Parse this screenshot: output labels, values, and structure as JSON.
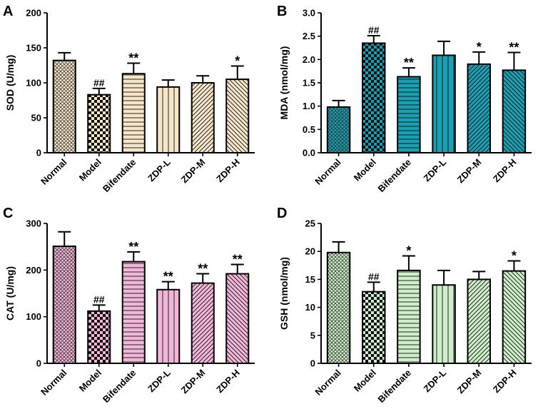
{
  "chart_data": [
    {
      "type": "bar",
      "panel": "A",
      "categories": [
        "Normal",
        "Model",
        "Bifendate",
        "ZDP-L",
        "ZDP-M",
        "ZDP-H"
      ],
      "values": [
        132,
        83,
        113,
        94,
        100,
        105
      ],
      "errors": [
        11,
        9,
        15,
        10,
        10,
        19
      ],
      "significance": [
        "",
        "##",
        "**",
        "",
        "",
        "*"
      ],
      "ylabel": "SOD (U/mg)",
      "ylim": [
        0,
        200
      ],
      "yticks": [
        0,
        50,
        100,
        150,
        200
      ],
      "color": "#f5e6c8",
      "patterns": [
        "crosshatch",
        "checker",
        "horizontal",
        "vertical",
        "diag-right",
        "diag-left"
      ]
    },
    {
      "type": "bar",
      "panel": "B",
      "categories": [
        "Normal",
        "Model",
        "Bifendate",
        "ZDP-L",
        "ZDP-M",
        "ZDP-H"
      ],
      "values": [
        0.98,
        2.35,
        1.63,
        2.09,
        1.9,
        1.77
      ],
      "errors": [
        0.14,
        0.16,
        0.19,
        0.3,
        0.26,
        0.38
      ],
      "significance": [
        "",
        "##",
        "**",
        "",
        "*",
        "**"
      ],
      "ylabel": "MDA (nmol/mg)",
      "ylim": [
        0,
        3
      ],
      "yticks": [
        "0.0",
        "0.5",
        "1.0",
        "1.5",
        "2.0",
        "2.5",
        "3.0"
      ],
      "color": "#1a9fb3",
      "patterns": [
        "crosshatch",
        "checker",
        "horizontal",
        "vertical",
        "diag-right",
        "diag-left"
      ]
    },
    {
      "type": "bar",
      "panel": "C",
      "categories": [
        "Normal",
        "Model",
        "Bifendate",
        "ZDP-L",
        "ZDP-M",
        "ZDP-H"
      ],
      "values": [
        251,
        112,
        218,
        158,
        172,
        192
      ],
      "errors": [
        31,
        13,
        21,
        17,
        20,
        20
      ],
      "significance": [
        "",
        "##",
        "**",
        "**",
        "**",
        "**"
      ],
      "ylabel": "CAT (U/mg)",
      "ylim": [
        0,
        300
      ],
      "yticks": [
        0,
        100,
        200,
        300
      ],
      "color": "#f2b6d8",
      "patterns": [
        "crosshatch",
        "checker",
        "horizontal",
        "vertical",
        "diag-right",
        "diag-left"
      ]
    },
    {
      "type": "bar",
      "panel": "D",
      "categories": [
        "Normal",
        "Model",
        "Bifendate",
        "ZDP-L",
        "ZDP-M",
        "ZDP-H"
      ],
      "values": [
        19.8,
        12.8,
        16.6,
        14.0,
        15.0,
        16.5
      ],
      "errors": [
        1.9,
        1.7,
        2.6,
        2.6,
        1.4,
        1.8
      ],
      "significance": [
        "",
        "##",
        "*",
        "",
        "",
        "*"
      ],
      "ylabel": "GSH (nmol/mg)",
      "ylim": [
        0,
        25
      ],
      "yticks": [
        0,
        5,
        10,
        15,
        20,
        25
      ],
      "color": "#cdeec8",
      "patterns": [
        "crosshatch",
        "checker",
        "horizontal",
        "vertical",
        "diag-right",
        "diag-left"
      ]
    }
  ]
}
